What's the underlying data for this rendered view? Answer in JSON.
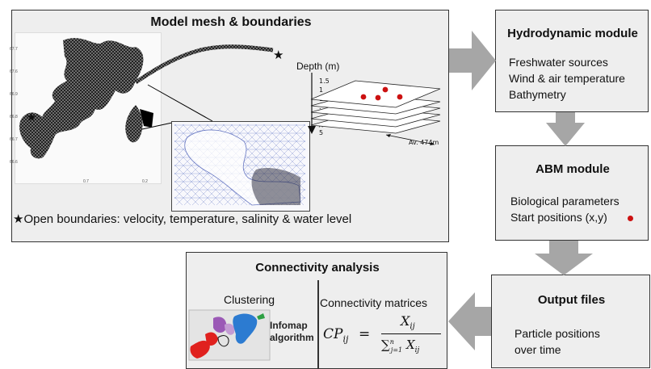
{
  "mesh_panel": {
    "title": "Model mesh & boundaries",
    "depth_label": "Depth (m)",
    "depth_values": [
      "1.5",
      "1",
      "1",
      ".",
      ".",
      "X",
      "5"
    ],
    "depth_superscript": "n",
    "avg_label": "Av. 474m",
    "star_glyph": "★",
    "boundary_caption": "Open boundaries: velocity, temperature, salinity & water level"
  },
  "hydro_panel": {
    "title": "Hydrodynamic module",
    "items": [
      "Freshwater sources",
      "Wind & air temperature",
      "Bathymetry"
    ]
  },
  "abm_panel": {
    "title": "ABM module",
    "items": [
      "Biological parameters",
      "Start positions (x,y)"
    ]
  },
  "output_panel": {
    "title": "Output files",
    "items": [
      "Particle positions",
      "over time"
    ]
  },
  "connectivity_panel": {
    "title": "Connectivity analysis",
    "clustering_label": "Clustering",
    "infomap_label": "Infomap algorithm",
    "infomap_line1": "Infomap",
    "infomap_line2": "algorithm",
    "matrices_label": "Connectivity matrices",
    "formula": {
      "lhs": "CP",
      "lhs_sub": "ij",
      "eq": "=",
      "numerator": "X",
      "numerator_sub": "ij",
      "denominator_sum": "∑",
      "denominator_sub": "j=1",
      "denominator_sup": "n",
      "denominator_x": "X",
      "denominator_x_sub": "ij"
    }
  },
  "colors": {
    "panel_bg": "#eeeeee",
    "arrow": "#a6a6a6",
    "particle_red": "#cc1111",
    "mesh_blue": "#3a4fb0"
  }
}
